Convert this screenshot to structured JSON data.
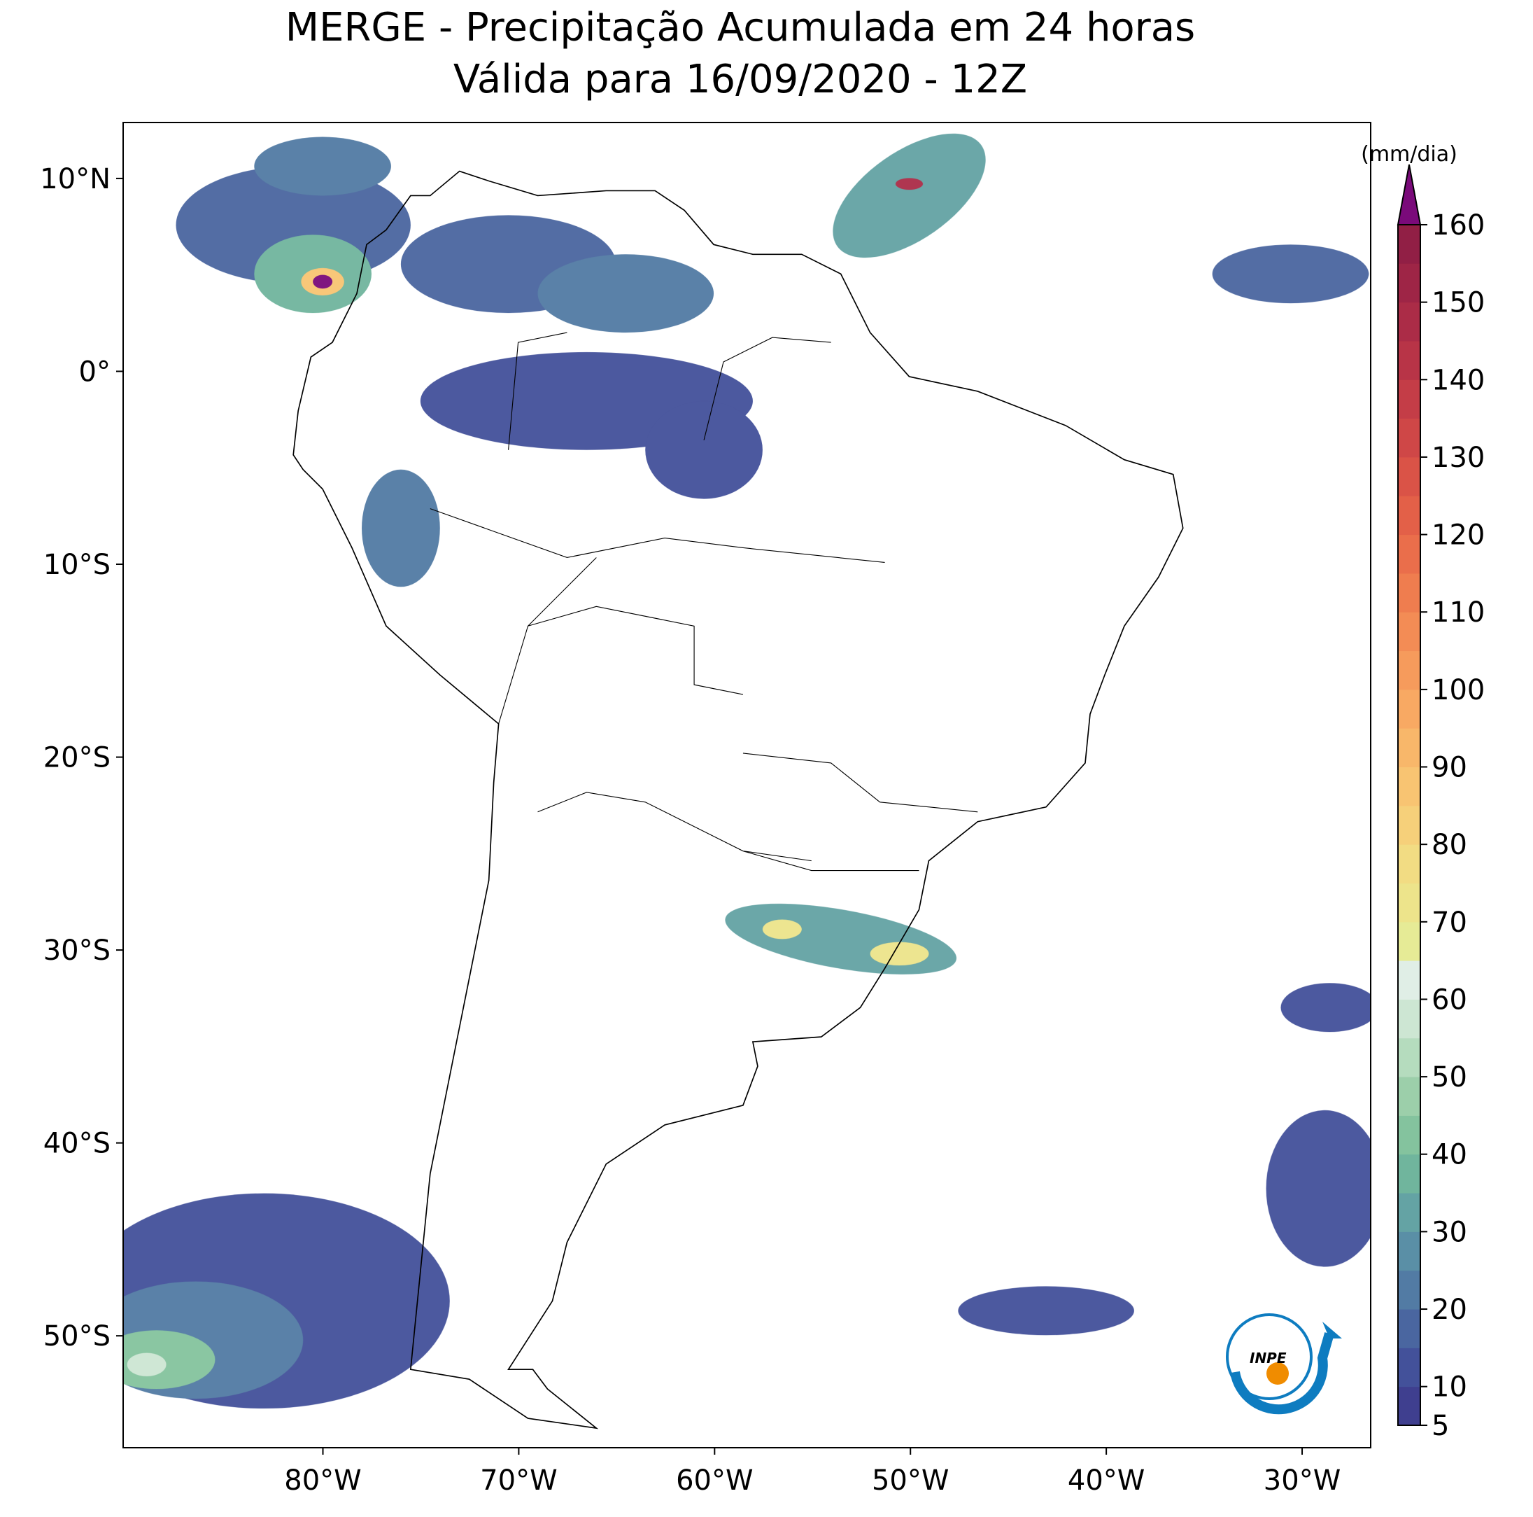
{
  "map": {
    "title": "MERGE - Precipitação Acumulada em 24 horas",
    "subtitle": "Válida para 16/09/2020 - 12Z",
    "xlim": [
      -90.2,
      -26.5
    ],
    "ylim": [
      -55.8,
      12.9
    ],
    "xticks": [
      {
        "value": -80,
        "label": "80°W"
      },
      {
        "value": -70,
        "label": "70°W"
      },
      {
        "value": -60,
        "label": "60°W"
      },
      {
        "value": -50,
        "label": "50°W"
      },
      {
        "value": -40,
        "label": "40°W"
      },
      {
        "value": -30,
        "label": "30°W"
      }
    ],
    "yticks": [
      {
        "value": 10,
        "label": "10°N"
      },
      {
        "value": 0,
        "label": "0°"
      },
      {
        "value": -10,
        "label": "10°S"
      },
      {
        "value": -20,
        "label": "20°S"
      },
      {
        "value": -30,
        "label": "30°S"
      },
      {
        "value": -40,
        "label": "40°S"
      },
      {
        "value": -50,
        "label": "50°S"
      }
    ],
    "colorbar": {
      "label": "(mm/dia)",
      "lim": [
        5,
        160
      ],
      "ticks": [
        5,
        10,
        20,
        30,
        40,
        50,
        60,
        70,
        80,
        90,
        100,
        110,
        120,
        130,
        140,
        150,
        160
      ],
      "colors": [
        "#3f3f8f",
        "#43519a",
        "#4a66a0",
        "#527ba4",
        "#5a8fa6",
        "#64a3a4",
        "#70b59d",
        "#84c39e",
        "#9ccfaa",
        "#b5dcbe",
        "#cde6d3",
        "#e0eee6",
        "#e6eb96",
        "#ede48b",
        "#f2dc83",
        "#f6d07a",
        "#f8c472",
        "#f8b76a",
        "#f8a963",
        "#f69b5c",
        "#f38c55",
        "#ef7d4f",
        "#ea6e4b",
        "#e36048",
        "#da5347",
        "#cf4747",
        "#c43d47",
        "#b83447",
        "#ab2c47",
        "#9e2546",
        "#911f45"
      ],
      "extend_color": "#7a0a7a"
    },
    "logo_text": "INPE"
  }
}
